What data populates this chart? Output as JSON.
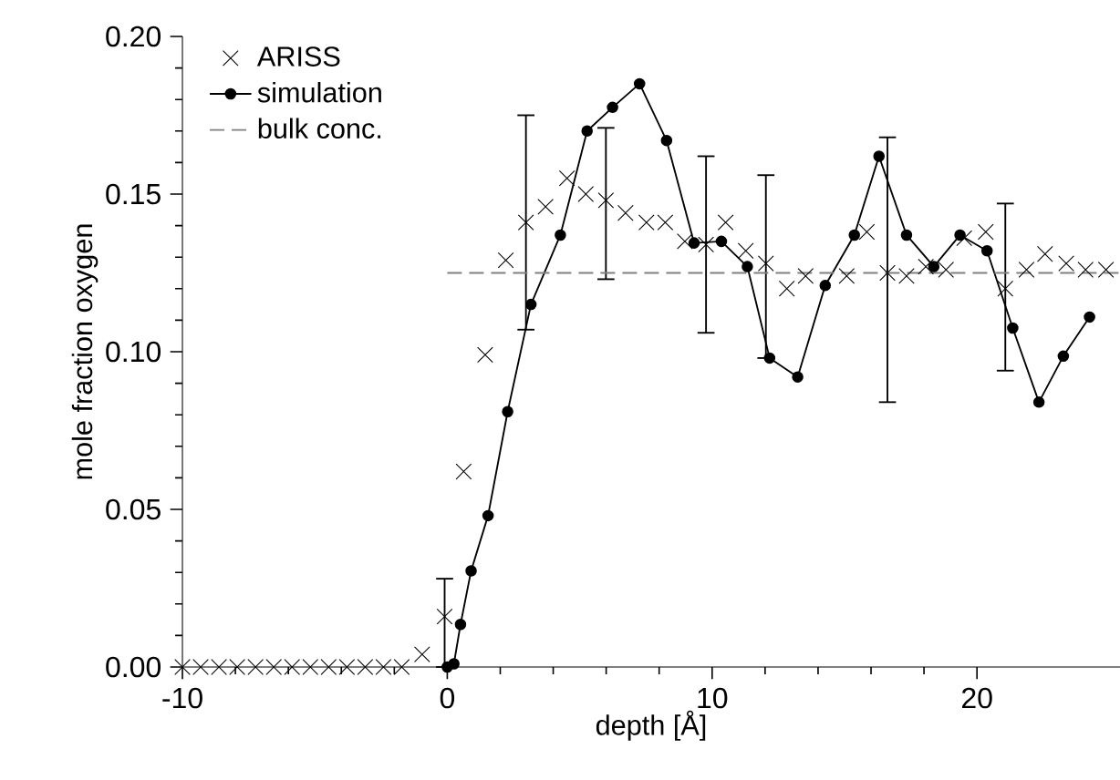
{
  "chart_data": {
    "type": "line",
    "xlabel": "depth [Å]",
    "ylabel": "mole fraction oxygen",
    "xlim": [
      -10,
      25.4
    ],
    "ylim": [
      0,
      0.2
    ],
    "xticks": [
      -10,
      0,
      10,
      20
    ],
    "yticks": [
      {
        "value": 0,
        "label": "0.00"
      },
      {
        "value": 0.05,
        "label": "0.05"
      },
      {
        "value": 0.1,
        "label": "0.10"
      },
      {
        "value": 0.15,
        "label": "0.15"
      },
      {
        "value": 0.2,
        "label": "0.20"
      }
    ],
    "grid": false,
    "legend": "top left",
    "series": [
      {
        "name": "ARISS",
        "type": "scatter",
        "marker": "cross",
        "color": "#000000",
        "x": [
          -10,
          -9.31,
          -8.62,
          -7.93,
          -7.24,
          -6.55,
          -5.86,
          -5.17,
          -4.48,
          -3.79,
          -3.1,
          -2.41,
          -1.72,
          -0.95,
          -0.1,
          0.62,
          1.43,
          2.21,
          2.97,
          3.71,
          4.52,
          5.23,
          5.99,
          6.73,
          7.52,
          8.23,
          8.97,
          9.77,
          10.51,
          11.27,
          12.03,
          12.82,
          13.53,
          14.3,
          15.08,
          15.84,
          16.62,
          17.34,
          18.07,
          18.83,
          19.52,
          20.33,
          21.07,
          21.87,
          22.57,
          23.37,
          24.1,
          24.87
        ],
        "values": [
          0,
          0,
          0,
          0,
          0,
          0,
          0,
          0,
          0,
          0,
          0,
          0,
          0,
          0.004,
          0.016,
          0.062,
          0.099,
          0.129,
          0.141,
          0.146,
          0.155,
          0.15,
          0.148,
          0.144,
          0.141,
          0.141,
          0.135,
          0.134,
          0.141,
          0.132,
          0.128,
          0.12,
          0.124,
          null,
          0.124,
          0.138,
          0.125,
          0.124,
          0.127,
          0.126,
          0.136,
          0.138,
          0.12,
          0.126,
          0.131,
          0.128,
          0.126,
          0.126
        ],
        "errors": [
          null,
          null,
          null,
          null,
          null,
          null,
          null,
          null,
          null,
          null,
          null,
          null,
          null,
          null,
          [
            0,
            0.028
          ],
          null,
          null,
          null,
          [
            0.107,
            0.175
          ],
          null,
          null,
          null,
          [
            0.123,
            0.171
          ],
          null,
          null,
          null,
          null,
          [
            0.106,
            0.162
          ],
          null,
          null,
          [
            0.098,
            0.156
          ],
          null,
          null,
          null,
          null,
          null,
          [
            0.084,
            0.168
          ],
          null,
          null,
          null,
          null,
          null,
          [
            0.094,
            0.147
          ],
          null,
          null,
          null,
          null,
          null
        ]
      },
      {
        "name": "simulation",
        "marker": "circle",
        "line_style": "solid",
        "color": "#000000",
        "x": [
          0,
          0.25,
          0.5,
          0.9,
          1.54,
          2.28,
          3.16,
          4.27,
          5.28,
          6.24,
          7.26,
          8.28,
          9.32,
          10.35,
          11.33,
          12.17,
          13.23,
          14.27,
          15.37,
          16.3,
          17.34,
          18.37,
          19.36,
          20.38,
          21.35,
          22.34,
          23.26,
          24.25
        ],
        "values": [
          0,
          0.001,
          0.0135,
          0.0305,
          0.048,
          0.081,
          0.115,
          0.137,
          0.17,
          0.1775,
          0.185,
          0.167,
          0.1345,
          0.135,
          0.127,
          0.098,
          0.092,
          0.121,
          0.137,
          0.162,
          0.137,
          0.127,
          0.137,
          0.132,
          0.1075,
          0.084,
          0.0986,
          0.111
        ]
      },
      {
        "name": "bulk conc.",
        "marker": "none",
        "line_style": "dashed",
        "color": "#808080",
        "x": [
          0,
          25.4
        ],
        "values": [
          0.125,
          0.125
        ]
      }
    ]
  }
}
